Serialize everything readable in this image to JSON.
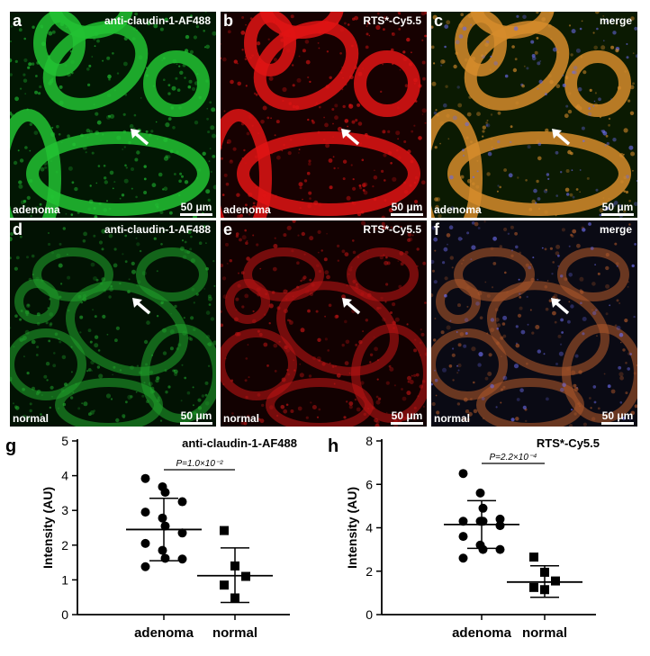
{
  "figure": {
    "micrographs": [
      {
        "letter": "a",
        "title": "anti-claudin-1-AF488",
        "tissue": "adenoma",
        "scale": "50 μm",
        "color": "#22c233",
        "bg": "#021703",
        "merge": false
      },
      {
        "letter": "b",
        "title": "RTS*-Cy5.5",
        "tissue": "adenoma",
        "scale": "50 μm",
        "color": "#e01414",
        "bg": "#170101",
        "merge": false
      },
      {
        "letter": "c",
        "title": "merge",
        "tissue": "adenoma",
        "scale": "50 μm",
        "color": "#d68c2c",
        "bg": "#0b1a02",
        "merge": true
      },
      {
        "letter": "d",
        "title": "anti-claudin-1-AF488",
        "tissue": "normal",
        "scale": "50 μm",
        "color": "#1f9d2a",
        "bg": "#021203",
        "merge": false
      },
      {
        "letter": "e",
        "title": "RTS*-Cy5.5",
        "tissue": "normal",
        "scale": "50 μm",
        "color": "#b81414",
        "bg": "#120101",
        "merge": false
      },
      {
        "letter": "f",
        "title": "merge",
        "tissue": "normal",
        "scale": "50 μm",
        "color": "#a8552a",
        "bg": "#0a0a14",
        "merge": true
      }
    ]
  },
  "chart_data": [
    {
      "type": "scatter",
      "letter": "g",
      "title": "anti-claudin-1-AF488",
      "xlabel": "",
      "ylabel": "Intensity (AU)",
      "categories": [
        "adenoma",
        "normal"
      ],
      "ylim": [
        0,
        5
      ],
      "yticks": [
        "0",
        "1",
        "2",
        "3",
        "4",
        "5"
      ],
      "series": [
        {
          "category": "adenoma",
          "marker": "circle",
          "values": [
            3.92,
            3.68,
            3.52,
            3.25,
            2.95,
            2.78,
            2.55,
            2.35,
            2.05,
            1.85,
            1.62,
            1.6,
            1.38
          ],
          "mean": 2.45,
          "sd_low": 1.55,
          "sd_high": 3.35
        },
        {
          "category": "normal",
          "marker": "square",
          "values": [
            2.42,
            1.4,
            1.1,
            0.85,
            0.48
          ],
          "mean": 1.12,
          "sd_low": 0.35,
          "sd_high": 1.92
        }
      ],
      "annotation": "P=1.0×10⁻²"
    },
    {
      "type": "scatter",
      "letter": "h",
      "title": "RTS*-Cy5.5",
      "xlabel": "",
      "ylabel": "Intensity (AU)",
      "categories": [
        "adenoma",
        "normal"
      ],
      "ylim": [
        0,
        8
      ],
      "yticks": [
        "0",
        "2",
        "4",
        "6",
        "8"
      ],
      "series": [
        {
          "category": "adenoma",
          "marker": "circle",
          "values": [
            6.5,
            5.6,
            4.9,
            4.4,
            4.3,
            4.3,
            4.3,
            4.1,
            3.6,
            3.2,
            3.0,
            3.0,
            2.6
          ],
          "mean": 4.15,
          "sd_low": 3.05,
          "sd_high": 5.25
        },
        {
          "category": "normal",
          "marker": "square",
          "values": [
            2.65,
            1.95,
            1.55,
            1.25,
            1.15
          ],
          "mean": 1.5,
          "sd_low": 0.8,
          "sd_high": 2.25
        }
      ],
      "annotation": "P=2.2×10⁻⁴"
    }
  ]
}
